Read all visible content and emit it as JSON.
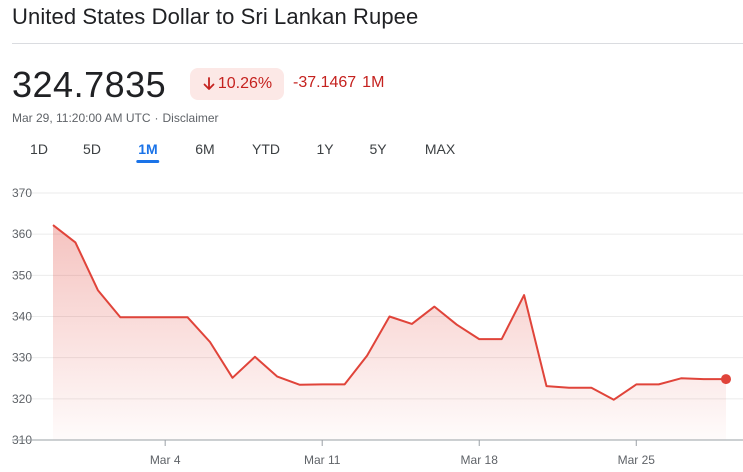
{
  "header": {
    "title": "United States Dollar to Sri Lankan Rupee"
  },
  "quote": {
    "price": "324.7835",
    "change_percent": "10.26%",
    "change_direction": "down",
    "change_absolute": "-37.1467",
    "change_period": "1M",
    "timestamp": "Mar 29, 11:20:00 AM UTC",
    "separator": "·",
    "disclaimer": "Disclaimer"
  },
  "colors": {
    "negative": "#c5221f",
    "negative_bg": "#fce8e6",
    "line": "#e0443a",
    "active_tab": "#1a73e8"
  },
  "tabs": [
    {
      "label": "1D",
      "active": false
    },
    {
      "label": "5D",
      "active": false
    },
    {
      "label": "1M",
      "active": true
    },
    {
      "label": "6M",
      "active": false
    },
    {
      "label": "YTD",
      "active": false
    },
    {
      "label": "1Y",
      "active": false
    },
    {
      "label": "5Y",
      "active": false
    },
    {
      "label": "MAX",
      "active": false
    }
  ],
  "chart_data": {
    "type": "area",
    "ylim": [
      310,
      370
    ],
    "ytick_labels": [
      "370",
      "360",
      "350",
      "340",
      "330",
      "320",
      "310"
    ],
    "xlim": [
      "2024-02-28",
      "2024-03-29"
    ],
    "xtick_labels": [
      {
        "label": "Mar 4",
        "date": "2024-03-04"
      },
      {
        "label": "Mar 11",
        "date": "2024-03-11"
      },
      {
        "label": "Mar 18",
        "date": "2024-03-18"
      },
      {
        "label": "Mar 25",
        "date": "2024-03-25"
      }
    ],
    "grid": true,
    "series": [
      {
        "points": [
          {
            "x": "2024-02-28",
            "y": 362.2
          },
          {
            "x": "2024-02-29",
            "y": 358.0
          },
          {
            "x": "2024-03-01",
            "y": 346.4
          },
          {
            "x": "2024-03-02",
            "y": 339.8
          },
          {
            "x": "2024-03-04",
            "y": 339.8
          },
          {
            "x": "2024-03-05",
            "y": 339.8
          },
          {
            "x": "2024-03-06",
            "y": 333.8
          },
          {
            "x": "2024-03-07",
            "y": 325.1
          },
          {
            "x": "2024-03-08",
            "y": 330.2
          },
          {
            "x": "2024-03-09",
            "y": 325.4
          },
          {
            "x": "2024-03-10",
            "y": 323.4
          },
          {
            "x": "2024-03-11",
            "y": 323.5
          },
          {
            "x": "2024-03-12",
            "y": 323.5
          },
          {
            "x": "2024-03-13",
            "y": 330.5
          },
          {
            "x": "2024-03-14",
            "y": 340.0
          },
          {
            "x": "2024-03-15",
            "y": 338.2
          },
          {
            "x": "2024-03-16",
            "y": 342.4
          },
          {
            "x": "2024-03-17",
            "y": 338.0
          },
          {
            "x": "2024-03-18",
            "y": 334.5
          },
          {
            "x": "2024-03-19",
            "y": 334.5
          },
          {
            "x": "2024-03-20",
            "y": 345.2
          },
          {
            "x": "2024-03-21",
            "y": 323.1
          },
          {
            "x": "2024-03-22",
            "y": 322.7
          },
          {
            "x": "2024-03-23",
            "y": 322.7
          },
          {
            "x": "2024-03-24",
            "y": 319.8
          },
          {
            "x": "2024-03-25",
            "y": 323.5
          },
          {
            "x": "2024-03-26",
            "y": 323.5
          },
          {
            "x": "2024-03-27",
            "y": 325.0
          },
          {
            "x": "2024-03-28",
            "y": 324.8
          },
          {
            "x": "2024-03-29",
            "y": 324.8
          }
        ]
      }
    ]
  }
}
